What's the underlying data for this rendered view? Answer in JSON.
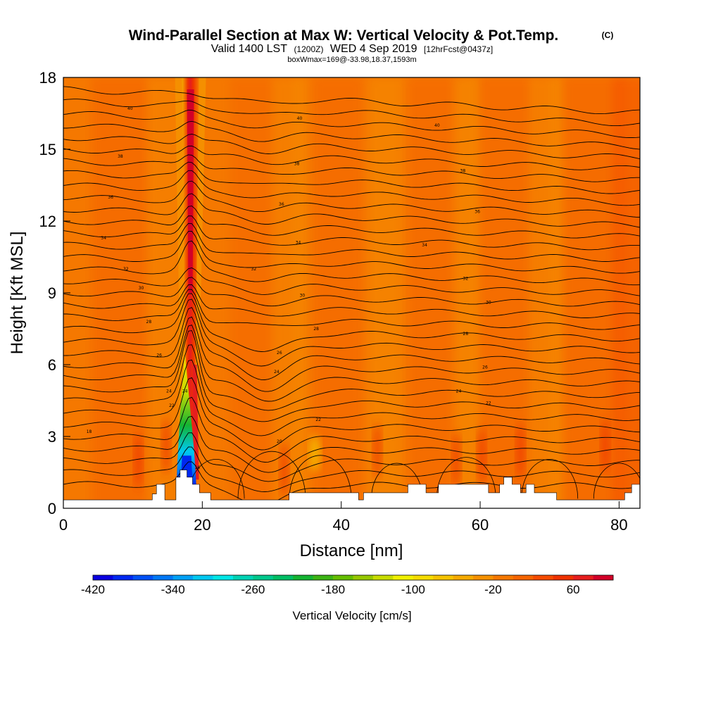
{
  "title": {
    "main": "Wind-Parallel Section at Max W: Vertical Velocity & Pot.Temp.",
    "main_suffix": "(C)",
    "valid_prefix": "Valid 1400 LST",
    "valid_utc": "(1200Z)",
    "valid_day": "WED 4 Sep 2019",
    "forecast": "[12hrFcst@0437z]",
    "box_info": "boxWmax=169@-33.98,18.37,1593m"
  },
  "chart_data": {
    "type": "heatmap",
    "title": "Wind-Parallel Section at Max W: Vertical Velocity & Pot.Temp.",
    "xlabel": "Distance [nm]",
    "ylabel": "Height [Kft MSL]",
    "xlim": [
      0,
      83
    ],
    "ylim": [
      0,
      18
    ],
    "x_ticks": [
      0,
      20,
      40,
      60,
      80
    ],
    "y_ticks": [
      0,
      3,
      6,
      9,
      12,
      15,
      18
    ],
    "x_tick_labels": [
      "0",
      "20",
      "40",
      "60",
      "80"
    ],
    "y_tick_labels": [
      "0",
      "3",
      "6",
      "9",
      "12",
      "15",
      "18"
    ],
    "colorbar": {
      "label": "Vertical Velocity [cm/s]",
      "min": -420,
      "max": 100,
      "step": 20,
      "tick_values": [
        -420,
        -340,
        -260,
        -180,
        -100,
        -20,
        60
      ],
      "tick_labels": [
        "-420",
        "-340",
        "-260",
        "-180",
        "-100",
        "-20",
        "60"
      ],
      "colors": [
        "#0a00e0",
        "#0028f0",
        "#0050f5",
        "#0078f5",
        "#00a0f5",
        "#00c8f0",
        "#00e6e6",
        "#00d2b4",
        "#00c88c",
        "#00be64",
        "#14b432",
        "#3cb414",
        "#64be00",
        "#96c800",
        "#c8dc00",
        "#f0f000",
        "#f5dc00",
        "#f5c300",
        "#f5aa00",
        "#f59100",
        "#f57800",
        "#f56400",
        "#f54b00",
        "#ee3200",
        "#e61e1e",
        "#d20028"
      ]
    },
    "features": {
      "strong_updraft_center_nm": 18.3,
      "strong_updraft_top_kft": 17.5,
      "peak_updraft_cm_s": 169,
      "downdraft_center_nm": 17.7,
      "downdraft_base_kft": 1.0,
      "downdraft_top_kft": 6.5,
      "peak_downdraft_cm_s": -420,
      "background_cm_s": -20
    },
    "theta_contour_labels": [
      {
        "text": "40",
        "x": 9.6,
        "y": 16.7
      },
      {
        "text": "40",
        "x": 34.0,
        "y": 16.3
      },
      {
        "text": "40",
        "x": 53.8,
        "y": 16.0
      },
      {
        "text": "38",
        "x": 8.2,
        "y": 14.7
      },
      {
        "text": "38",
        "x": 33.6,
        "y": 14.4
      },
      {
        "text": "38",
        "x": 57.5,
        "y": 14.1
      },
      {
        "text": "36",
        "x": 6.8,
        "y": 13.0
      },
      {
        "text": "36",
        "x": 31.4,
        "y": 12.7
      },
      {
        "text": "36",
        "x": 59.6,
        "y": 12.4
      },
      {
        "text": "34",
        "x": 5.8,
        "y": 11.3
      },
      {
        "text": "34",
        "x": 33.8,
        "y": 11.1
      },
      {
        "text": "34",
        "x": 52.0,
        "y": 11.0
      },
      {
        "text": "32",
        "x": 9.0,
        "y": 10.0
      },
      {
        "text": "32",
        "x": 27.4,
        "y": 10.0
      },
      {
        "text": "32",
        "x": 57.9,
        "y": 9.6
      },
      {
        "text": "30",
        "x": 11.2,
        "y": 9.2
      },
      {
        "text": "30",
        "x": 34.4,
        "y": 8.9
      },
      {
        "text": "30",
        "x": 61.2,
        "y": 8.6
      },
      {
        "text": "28",
        "x": 12.3,
        "y": 7.8
      },
      {
        "text": "28",
        "x": 36.4,
        "y": 7.5
      },
      {
        "text": "28",
        "x": 57.9,
        "y": 7.3
      },
      {
        "text": "26",
        "x": 13.8,
        "y": 6.4
      },
      {
        "text": "26",
        "x": 31.1,
        "y": 6.5
      },
      {
        "text": "26",
        "x": 60.7,
        "y": 5.9
      },
      {
        "text": "24",
        "x": 15.2,
        "y": 4.9
      },
      {
        "text": "24",
        "x": 30.7,
        "y": 5.7
      },
      {
        "text": "24",
        "x": 56.9,
        "y": 4.9
      },
      {
        "text": "22",
        "x": 15.6,
        "y": 4.3
      },
      {
        "text": "22",
        "x": 36.7,
        "y": 3.7
      },
      {
        "text": "22",
        "x": 61.2,
        "y": 4.4
      },
      {
        "text": "20",
        "x": 31.1,
        "y": 2.8
      },
      {
        "text": "18",
        "x": 3.7,
        "y": 3.2
      },
      {
        "text": "16",
        "x": 19.3,
        "y": 1.7
      },
      {
        "text": "24",
        "x": 17.5,
        "y": 4.9
      }
    ],
    "terrain_kft": [
      {
        "x": 0,
        "y": 0.35
      },
      {
        "x": 12.8,
        "y": 0.35
      },
      {
        "x": 12.8,
        "y": 0.6
      },
      {
        "x": 13.4,
        "y": 0.6
      },
      {
        "x": 13.4,
        "y": 1.0
      },
      {
        "x": 14.6,
        "y": 1.0
      },
      {
        "x": 14.6,
        "y": 0.35
      },
      {
        "x": 16.2,
        "y": 0.35
      },
      {
        "x": 16.2,
        "y": 1.3
      },
      {
        "x": 16.8,
        "y": 1.3
      },
      {
        "x": 16.8,
        "y": 1.6
      },
      {
        "x": 17.8,
        "y": 1.6
      },
      {
        "x": 17.8,
        "y": 1.3
      },
      {
        "x": 18.6,
        "y": 1.3
      },
      {
        "x": 18.6,
        "y": 1.0
      },
      {
        "x": 19.6,
        "y": 1.0
      },
      {
        "x": 19.6,
        "y": 0.65
      },
      {
        "x": 21.2,
        "y": 0.65
      },
      {
        "x": 21.2,
        "y": 0.35
      },
      {
        "x": 32.5,
        "y": 0.35
      },
      {
        "x": 32.5,
        "y": 0.65
      },
      {
        "x": 42.5,
        "y": 0.65
      },
      {
        "x": 42.5,
        "y": 0.35
      },
      {
        "x": 43.2,
        "y": 0.35
      },
      {
        "x": 43.2,
        "y": 0.65
      },
      {
        "x": 49.6,
        "y": 0.65
      },
      {
        "x": 49.6,
        "y": 1.0
      },
      {
        "x": 52.2,
        "y": 1.0
      },
      {
        "x": 52.2,
        "y": 0.65
      },
      {
        "x": 54.0,
        "y": 0.65
      },
      {
        "x": 54.0,
        "y": 1.0
      },
      {
        "x": 61.2,
        "y": 1.0
      },
      {
        "x": 61.2,
        "y": 0.65
      },
      {
        "x": 62.8,
        "y": 0.65
      },
      {
        "x": 62.8,
        "y": 1.0
      },
      {
        "x": 63.4,
        "y": 1.0
      },
      {
        "x": 63.4,
        "y": 1.3
      },
      {
        "x": 64.6,
        "y": 1.3
      },
      {
        "x": 64.6,
        "y": 1.0
      },
      {
        "x": 65.8,
        "y": 1.0
      },
      {
        "x": 65.8,
        "y": 0.65
      },
      {
        "x": 66.6,
        "y": 0.65
      },
      {
        "x": 66.6,
        "y": 1.0
      },
      {
        "x": 67.8,
        "y": 1.0
      },
      {
        "x": 67.8,
        "y": 0.65
      },
      {
        "x": 71.0,
        "y": 0.65
      },
      {
        "x": 71.0,
        "y": 0.35
      },
      {
        "x": 80.8,
        "y": 0.35
      },
      {
        "x": 80.8,
        "y": 0.65
      },
      {
        "x": 81.8,
        "y": 0.65
      },
      {
        "x": 81.8,
        "y": 1.0
      },
      {
        "x": 83,
        "y": 1.0
      }
    ]
  }
}
